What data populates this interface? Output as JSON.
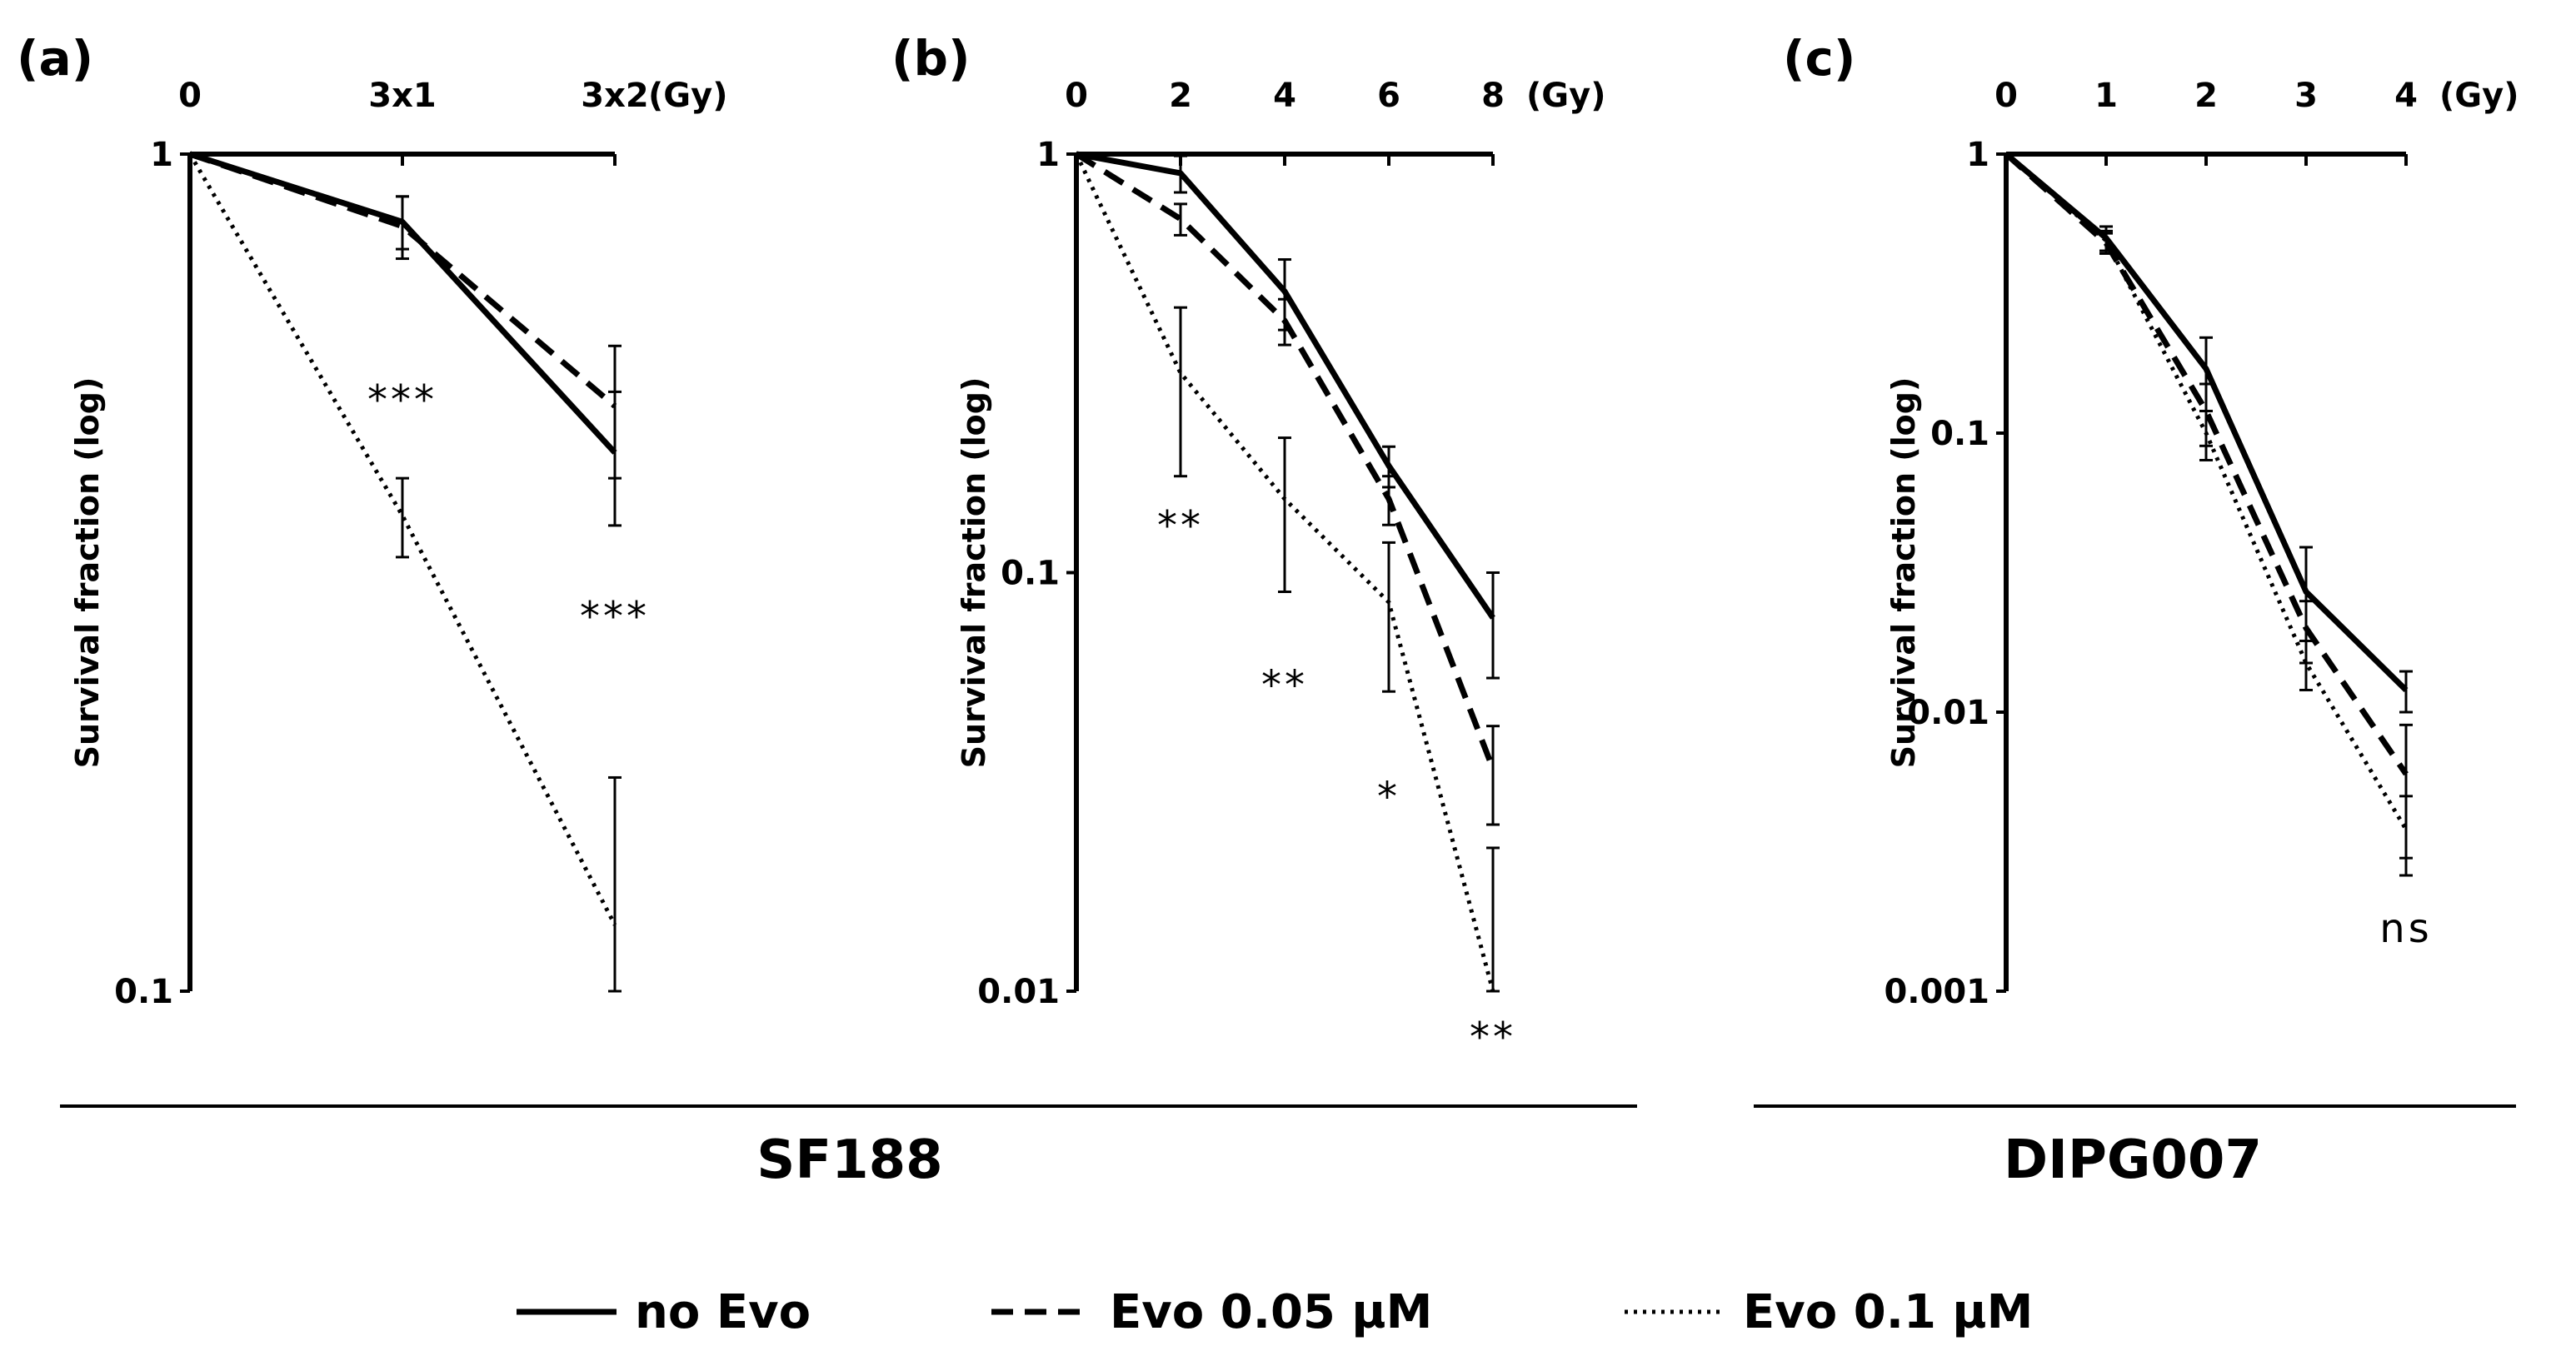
{
  "chart_data": [
    {
      "panel": "(a)",
      "type": "line",
      "xunit": "(Gy)",
      "categories": [
        "0",
        "3x1",
        "3x2"
      ],
      "ylabel": "Survival fraction (log)",
      "yscale": "log",
      "ylim": [
        0.1,
        1
      ],
      "yticks": [
        "1",
        "0.1"
      ],
      "series": [
        {
          "name": "no Evo",
          "style": "solid",
          "values": [
            1,
            0.83,
            0.44
          ],
          "err": [
            0,
            0.06,
            0.08
          ]
        },
        {
          "name": "Evo 0.05 µM",
          "style": "dashed",
          "values": [
            1,
            0.82,
            0.5
          ],
          "err": [
            0,
            0.07,
            0.09
          ]
        },
        {
          "name": "Evo 0.1 µM",
          "style": "dotted",
          "values": [
            1,
            0.37,
            0.12
          ],
          "err": [
            0,
            0.04,
            0.06
          ]
        }
      ],
      "annotations": [
        {
          "text": "***",
          "x": "3x1",
          "y": 0.49
        },
        {
          "text": "***",
          "x": "3x2",
          "y": 0.27
        }
      ]
    },
    {
      "panel": "(b)",
      "type": "line",
      "xunit": "(Gy)",
      "categories": [
        "0",
        "2",
        "4",
        "6",
        "8"
      ],
      "ylabel": "Survival fraction (log)",
      "yscale": "log",
      "ylim": [
        0.01,
        1
      ],
      "yticks": [
        "1",
        "0.1",
        "0.01"
      ],
      "series": [
        {
          "name": "no Evo",
          "style": "solid",
          "values": [
            1,
            0.9,
            0.47,
            0.18,
            0.078
          ],
          "err": [
            0,
            0.09,
            0.09,
            0.02,
            0.022
          ]
        },
        {
          "name": "Evo 0.05 µM",
          "style": "dashed",
          "values": [
            1,
            0.7,
            0.4,
            0.15,
            0.034
          ],
          "err": [
            0,
            0.06,
            0.05,
            0.02,
            0.009
          ]
        },
        {
          "name": "Evo 0.1 µM",
          "style": "dotted",
          "values": [
            1,
            0.3,
            0.15,
            0.085,
            0.01
          ],
          "err": [
            0,
            0.13,
            0.06,
            0.033,
            0.012
          ]
        }
      ],
      "annotations": [
        {
          "text": "**",
          "x": "2",
          "y": 0.12
        },
        {
          "text": "**",
          "x": "4",
          "y": 0.05
        },
        {
          "text": "*",
          "x": "6",
          "y": 0.027
        },
        {
          "text": "**",
          "x": "8",
          "y": 0.0072
        }
      ]
    },
    {
      "panel": "(c)",
      "type": "line",
      "xunit": "(Gy)",
      "categories": [
        "0",
        "1",
        "2",
        "3",
        "4"
      ],
      "ylabel": "Survival fraction (log)",
      "yscale": "log",
      "ylim": [
        0.001,
        1
      ],
      "yticks": [
        "1",
        "0.1",
        "0.01",
        "0.001"
      ],
      "series": [
        {
          "name": "no Evo",
          "style": "solid",
          "values": [
            1,
            0.5,
            0.17,
            0.027,
            0.012
          ],
          "err": [
            0,
            0.05,
            0.05,
            0.012,
            0.002
          ]
        },
        {
          "name": "Evo 0.05 µM",
          "style": "dashed",
          "values": [
            1,
            0.48,
            0.12,
            0.02,
            0.006
          ],
          "err": [
            0,
            0.04,
            0.03,
            0.005,
            0.003
          ]
        },
        {
          "name": "Evo 0.1 µM",
          "style": "dotted",
          "values": [
            1,
            0.49,
            0.1,
            0.015,
            0.0038
          ],
          "err": [
            0,
            0.04,
            0.02,
            0.003,
            0.0012
          ]
        }
      ],
      "annotations": [
        {
          "text": "ns",
          "x": "4",
          "y": 0.0015
        }
      ]
    }
  ],
  "groups": [
    {
      "label": "SF188",
      "panels": [
        "(a)",
        "(b)"
      ]
    },
    {
      "label": "DIPG007",
      "panels": [
        "(c)"
      ]
    }
  ],
  "legend": {
    "items": [
      {
        "label": "no Evo",
        "style": "solid"
      },
      {
        "label": "Evo 0.05 µM",
        "style": "dashed"
      },
      {
        "label": "Evo 0.1 µM",
        "style": "dotted"
      }
    ]
  }
}
